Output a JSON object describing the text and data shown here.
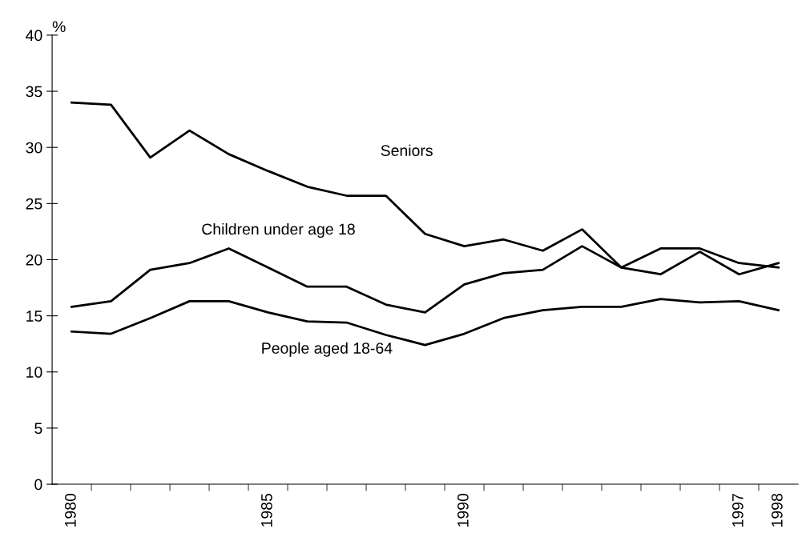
{
  "chart_data": {
    "type": "line",
    "ylabel": "%",
    "categories": [
      "1980",
      null,
      null,
      null,
      null,
      "1985",
      null,
      null,
      null,
      null,
      "1990",
      null,
      null,
      null,
      null,
      null,
      null,
      "1997",
      "1998"
    ],
    "series": [
      {
        "name": "Seniors",
        "color": "#000000",
        "values": [
          34.0,
          33.8,
          29.1,
          31.5,
          29.4,
          27.9,
          26.5,
          25.7,
          25.7,
          22.3,
          21.2,
          21.8,
          20.8,
          22.7,
          19.3,
          21.0,
          21.0,
          19.7,
          19.3
        ]
      },
      {
        "name": "Children under age 18",
        "color": "#000000",
        "values": [
          15.8,
          16.3,
          19.1,
          19.7,
          21.0,
          19.3,
          17.6,
          17.6,
          16.0,
          15.3,
          17.8,
          18.8,
          19.1,
          21.2,
          19.3,
          18.7,
          20.7,
          18.7,
          19.7
        ]
      },
      {
        "name": "People aged 18-64",
        "color": "#000000",
        "values": [
          13.6,
          13.4,
          14.8,
          16.3,
          16.3,
          15.3,
          14.5,
          14.4,
          13.3,
          12.4,
          13.4,
          14.8,
          15.5,
          15.8,
          15.8,
          16.5,
          16.2,
          16.3,
          15.5
        ]
      }
    ],
    "ylim": [
      0,
      40
    ],
    "yticks": [
      0,
      5,
      10,
      15,
      20,
      25,
      30,
      35,
      40
    ],
    "grid": false,
    "legend": false,
    "marker": "none",
    "line_style": "solid"
  }
}
